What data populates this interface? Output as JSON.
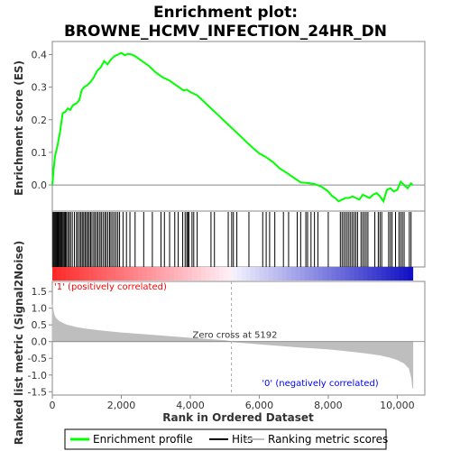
{
  "chart_data": {
    "type": "line",
    "title_line1": "Enrichment plot:",
    "title_line2": "BROWNE_HCMV_INFECTION_24HR_DN",
    "colors": {
      "enrichment": "#00ff00",
      "hits": "#000000",
      "metric_fill": "#bebebe",
      "positive_label": "#ff0000",
      "negative_label": "#0000ff"
    },
    "es_panel": {
      "ylabel": "Enrichment score (ES)",
      "ylim": [
        -0.08,
        0.44
      ],
      "yticks": [
        0.0,
        0.1,
        0.2,
        0.3,
        0.4
      ],
      "ytick_labels": [
        "0.0",
        "0.1",
        "0.2",
        "0.3",
        "0.4"
      ],
      "grid": false,
      "profile": {
        "name": "Enrichment profile",
        "x": [
          0,
          40,
          80,
          150,
          220,
          300,
          380,
          450,
          520,
          600,
          700,
          780,
          850,
          920,
          1000,
          1100,
          1200,
          1300,
          1400,
          1500,
          1600,
          1700,
          1800,
          1900,
          2000,
          2100,
          2200,
          2300,
          2400,
          2600,
          2800,
          3000,
          3200,
          3400,
          3600,
          3800,
          3900,
          4000,
          4200,
          4400,
          4600,
          4800,
          5000,
          5200,
          5400,
          5600,
          5800,
          6000,
          6200,
          6400,
          6600,
          6800,
          7000,
          7200,
          7400,
          7600,
          7800,
          8000,
          8100,
          8200,
          8300,
          8400,
          8500,
          8600,
          8700,
          8800,
          8900,
          9000,
          9100,
          9200,
          9300,
          9400,
          9500,
          9600,
          9700,
          9800,
          9900,
          10000,
          10100,
          10200,
          10300,
          10400,
          10450
        ],
        "y": [
          0.0,
          0.05,
          0.09,
          0.12,
          0.16,
          0.22,
          0.225,
          0.235,
          0.23,
          0.245,
          0.25,
          0.26,
          0.29,
          0.3,
          0.305,
          0.315,
          0.33,
          0.35,
          0.36,
          0.38,
          0.37,
          0.385,
          0.395,
          0.4,
          0.405,
          0.398,
          0.402,
          0.4,
          0.395,
          0.38,
          0.365,
          0.345,
          0.33,
          0.32,
          0.305,
          0.29,
          0.292,
          0.285,
          0.275,
          0.255,
          0.235,
          0.215,
          0.195,
          0.175,
          0.155,
          0.135,
          0.115,
          0.097,
          0.085,
          0.07,
          0.05,
          0.037,
          0.022,
          0.008,
          0.006,
          0.003,
          -0.005,
          -0.02,
          -0.033,
          -0.04,
          -0.05,
          -0.045,
          -0.04,
          -0.04,
          -0.035,
          -0.04,
          -0.045,
          -0.03,
          -0.035,
          -0.04,
          -0.03,
          -0.025,
          -0.035,
          -0.05,
          -0.015,
          -0.01,
          -0.02,
          -0.015,
          0.01,
          0.0,
          -0.01,
          0.005,
          0.0
        ]
      }
    },
    "hits_panel": {
      "name": "Hits",
      "positions": [
        20,
        45,
        70,
        95,
        120,
        145,
        170,
        190,
        215,
        240,
        265,
        290,
        320,
        350,
        380,
        410,
        450,
        490,
        530,
        580,
        640,
        700,
        740,
        790,
        830,
        870,
        910,
        950,
        990,
        1030,
        1070,
        1110,
        1150,
        1200,
        1240,
        1290,
        1330,
        1380,
        1420,
        1470,
        1520,
        1560,
        1610,
        1660,
        1700,
        1750,
        1800,
        1850,
        1900,
        1950,
        2050,
        2150,
        2250,
        2400,
        2650,
        2900,
        3150,
        3250,
        3400,
        3550,
        3650,
        3780,
        3850,
        3900,
        3930,
        3960,
        4050,
        4100,
        4200,
        4600,
        4700,
        5100,
        5200,
        5250,
        5350,
        5700,
        6100,
        6200,
        6300,
        6450,
        6700,
        6850,
        7100,
        7200,
        7350,
        7400,
        7500,
        7600,
        7700,
        8000,
        8350,
        8400,
        8450,
        8500,
        8550,
        8600,
        8650,
        8700,
        8750,
        8800,
        8850,
        8950,
        9000,
        9050,
        9100,
        9150,
        9350,
        9450,
        9500,
        9550,
        9750,
        9800,
        9850,
        9950,
        10050,
        10100,
        10150,
        10200,
        10350,
        10400
      ]
    },
    "metric_panel": {
      "ylabel": "Ranked list metric (Signal2Noise)",
      "xlabel": "Rank in Ordered Dataset",
      "ylim": [
        -1.6,
        1.8
      ],
      "yticks": [
        -1.5,
        -1.0,
        -0.5,
        0.0,
        0.5,
        1.0,
        1.5
      ],
      "ytick_labels": [
        "-1.5",
        "-1.0",
        "-0.5",
        "0.0",
        "0.5",
        "1.0",
        "1.5"
      ],
      "xlim": [
        0,
        10800
      ],
      "xticks": [
        0,
        2000,
        4000,
        6000,
        8000,
        10000
      ],
      "xtick_labels": [
        "0",
        "2,000",
        "4,000",
        "6,000",
        "8,000",
        "10,000"
      ],
      "series": {
        "name": "Ranking metric scores",
        "x": [
          0,
          20,
          50,
          100,
          200,
          400,
          700,
          1000,
          1500,
          2000,
          3000,
          4000,
          5000,
          5192,
          6000,
          7000,
          8000,
          8500,
          9000,
          9500,
          9800,
          10000,
          10200,
          10350,
          10420,
          10450
        ],
        "y": [
          1.1,
          0.95,
          0.8,
          0.7,
          0.6,
          0.5,
          0.42,
          0.37,
          0.31,
          0.26,
          0.18,
          0.1,
          0.03,
          0.0,
          -0.07,
          -0.15,
          -0.22,
          -0.27,
          -0.33,
          -0.4,
          -0.47,
          -0.54,
          -0.64,
          -0.8,
          -1.1,
          -1.4
        ]
      },
      "zero_cross_label": "Zero cross at 5192",
      "zero_cross": 5192,
      "positive_label": "'1' (positively correlated)",
      "negative_label": "'0' (negatively correlated)",
      "max_rank": 10450
    },
    "legend": {
      "placement": "bottom",
      "entries": [
        "Enrichment profile",
        "Hits",
        "Ranking metric scores"
      ]
    }
  }
}
